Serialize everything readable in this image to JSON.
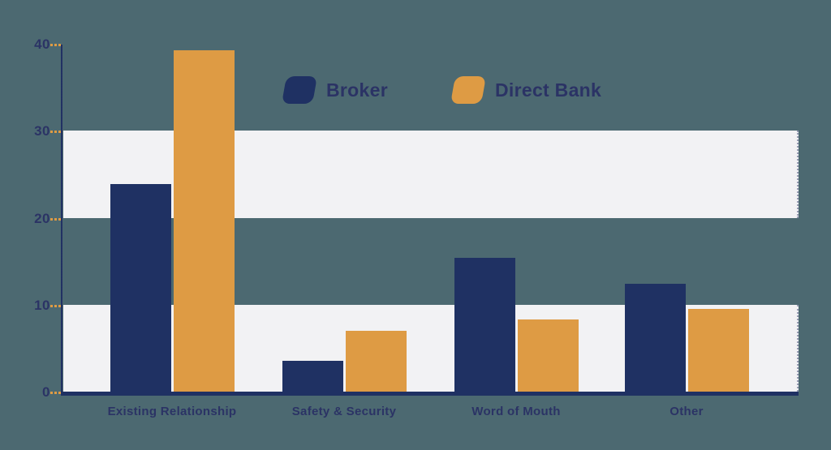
{
  "colors": {
    "background": "#4C6971",
    "navy": "#1F3163",
    "orange": "#DE9B44",
    "band": "#F2F2F4",
    "text": "#2B3365",
    "tick": "#DE9B44"
  },
  "chart_data": {
    "type": "bar",
    "title": "",
    "xlabel": "",
    "ylabel": "",
    "categories": [
      "Existing Relationship",
      "Safety & Security",
      "Word of Mouth",
      "Other"
    ],
    "series": [
      {
        "name": "Broker",
        "color": "#1F3163",
        "values": [
          23.9,
          3.5,
          15.4,
          12.4
        ]
      },
      {
        "name": "Direct Bank",
        "color": "#DE9B44",
        "values": [
          39.3,
          7.0,
          8.3,
          9.5
        ]
      }
    ],
    "ylim": [
      0,
      40
    ],
    "yticks": [
      0,
      10,
      20,
      30,
      40
    ],
    "band_ranges": [
      [
        0,
        10
      ],
      [
        20,
        30
      ]
    ],
    "band_color": "#F2F2F4",
    "grid": false,
    "legend_position": "top-center"
  }
}
